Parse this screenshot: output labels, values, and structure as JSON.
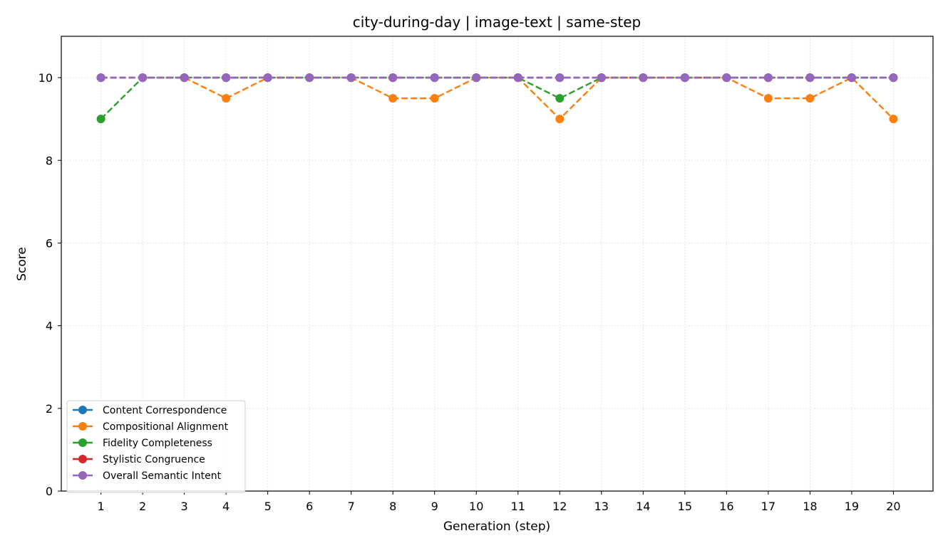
{
  "chart_data": {
    "type": "line",
    "title": "city-during-day | image-text | same-step",
    "xlabel": "Generation (step)",
    "ylabel": "Score",
    "x": [
      1,
      2,
      3,
      4,
      5,
      6,
      7,
      8,
      9,
      10,
      11,
      12,
      13,
      14,
      15,
      16,
      17,
      18,
      19,
      20
    ],
    "xticks": [
      "1",
      "2",
      "3",
      "4",
      "5",
      "6",
      "7",
      "8",
      "9",
      "10",
      "11",
      "12",
      "13",
      "14",
      "15",
      "16",
      "17",
      "18",
      "19",
      "20"
    ],
    "yticks": [
      "0",
      "2",
      "4",
      "6",
      "8",
      "10"
    ],
    "ylim": [
      0,
      11
    ],
    "xlim": [
      0.05,
      20.95
    ],
    "grid": true,
    "legend_position": "lower-left",
    "series": [
      {
        "name": "Content Correspondence",
        "color": "#1f77b4",
        "values": [
          10,
          10,
          10,
          10,
          10,
          10,
          10,
          10,
          10,
          10,
          10,
          10,
          10,
          10,
          10,
          10,
          10,
          10,
          10,
          10
        ]
      },
      {
        "name": "Compositional Alignment",
        "color": "#ff7f0e",
        "values": [
          10,
          10,
          10,
          9.5,
          10,
          10,
          10,
          9.5,
          9.5,
          10,
          10,
          9,
          10,
          10,
          10,
          10,
          9.5,
          9.5,
          10,
          9
        ]
      },
      {
        "name": "Fidelity Completeness",
        "color": "#2ca02c",
        "values": [
          9,
          10,
          10,
          10,
          10,
          10,
          10,
          10,
          10,
          10,
          10,
          9.5,
          10,
          10,
          10,
          10,
          10,
          10,
          10,
          10
        ]
      },
      {
        "name": "Stylistic Congruence",
        "color": "#d62728",
        "values": [
          10,
          10,
          10,
          10,
          10,
          10,
          10,
          10,
          10,
          10,
          10,
          10,
          10,
          10,
          10,
          10,
          10,
          10,
          10,
          10
        ]
      },
      {
        "name": "Overall Semantic Intent",
        "color": "#9467bd",
        "values": [
          10,
          10,
          10,
          10,
          10,
          10,
          10,
          10,
          10,
          10,
          10,
          10,
          10,
          10,
          10,
          10,
          10,
          10,
          10,
          10
        ]
      }
    ]
  }
}
